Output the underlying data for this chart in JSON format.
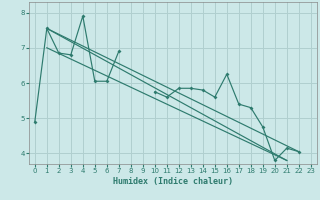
{
  "xlabel": "Humidex (Indice chaleur)",
  "xlim": [
    -0.5,
    23.5
  ],
  "ylim": [
    3.7,
    8.3
  ],
  "xticks": [
    0,
    1,
    2,
    3,
    4,
    5,
    6,
    7,
    8,
    9,
    10,
    11,
    12,
    13,
    14,
    15,
    16,
    17,
    18,
    19,
    20,
    21,
    22,
    23
  ],
  "yticks": [
    4,
    5,
    6,
    7,
    8
  ],
  "background_color": "#cce8e8",
  "grid_color": "#b0cfcf",
  "line_color": "#2e7b6e",
  "main_series_x": [
    0,
    1,
    2,
    3,
    4,
    5,
    6,
    7,
    10,
    11,
    12,
    13,
    14,
    15,
    16,
    17,
    18,
    19,
    20,
    21,
    22
  ],
  "main_series_y": [
    4.9,
    7.55,
    6.85,
    6.8,
    7.9,
    6.05,
    6.05,
    6.9,
    5.75,
    5.6,
    5.85,
    5.85,
    5.8,
    5.6,
    6.25,
    5.4,
    5.3,
    4.75,
    3.8,
    4.15,
    4.05
  ],
  "trend_lines": [
    [
      1,
      7.55,
      22,
      4.05
    ],
    [
      1,
      7.0,
      21,
      3.8
    ],
    [
      1,
      7.55,
      21,
      3.8
    ]
  ],
  "xlabel_fontsize": 6,
  "tick_fontsize": 5
}
